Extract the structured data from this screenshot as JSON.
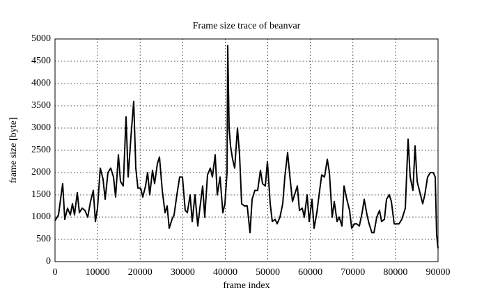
{
  "chart_data": {
    "type": "line",
    "title": "Frame size trace of beanvar",
    "xlabel": "frame index",
    "ylabel": "frame size [byte]",
    "xlim": [
      0,
      90000
    ],
    "ylim": [
      0,
      5000
    ],
    "xticks": [
      0,
      10000,
      20000,
      30000,
      40000,
      50000,
      60000,
      70000,
      80000,
      90000
    ],
    "yticks": [
      0,
      500,
      1000,
      1500,
      2000,
      2500,
      3000,
      3500,
      4000,
      4500,
      5000
    ],
    "grid": true,
    "x": [
      0,
      818,
      1800,
      2291,
      2945,
      3600,
      4091,
      4582,
      5236,
      5727,
      6382,
      7036,
      7691,
      8345,
      9000,
      9491,
      9982,
      10636,
      11291,
      11782,
      12436,
      13091,
      13745,
      14236,
      14891,
      15382,
      16036,
      16691,
      17182,
      17836,
      18491,
      18982,
      19473,
      20127,
      20618,
      21273,
      21764,
      22255,
      22909,
      23400,
      24055,
      24545,
      25200,
      25855,
      26345,
      26836,
      27491,
      27982,
      28636,
      29291,
      29945,
      30600,
      31091,
      31745,
      32236,
      32891,
      33545,
      34036,
      34691,
      35182,
      35836,
      36491,
      36982,
      37636,
      38127,
      38782,
      39436,
      39927,
      40418,
      40582,
      40909,
      41236,
      41727,
      42218,
      42873,
      43364,
      43855,
      44509,
      45164,
      45818,
      46309,
      46964,
      47618,
      48273,
      48764,
      49418,
      49909,
      50564,
      51055,
      51709,
      52200,
      52855,
      53509,
      54000,
      54655,
      55145,
      55800,
      56291,
      56945,
      57436,
      58091,
      58582,
      59236,
      59727,
      60382,
      60873,
      61527,
      62182,
      62673,
      63327,
      63982,
      64473,
      65127,
      65618,
      66273,
      66764,
      67418,
      67909,
      68564,
      69218,
      69709,
      70364,
      70855,
      71509,
      72164,
      72655,
      73309,
      73800,
      74455,
      74945,
      75600,
      76255,
      76745,
      77400,
      77891,
      78545,
      79036,
      79691,
      80345,
      80836,
      81491,
      82309,
      82964,
      83455,
      84109,
      84600,
      85091,
      85745,
      86400,
      86891,
      87545,
      88200,
      88855,
      89345,
      89673,
      90000
    ],
    "series": [
      {
        "color": "#000000",
        "values": [
          920,
          1050,
          1750,
          950,
          1200,
          1050,
          1300,
          1050,
          1550,
          1100,
          1200,
          1150,
          1000,
          1350,
          1600,
          900,
          1200,
          2100,
          1850,
          1400,
          2000,
          2100,
          1900,
          1450,
          2400,
          1800,
          1700,
          3250,
          1900,
          2800,
          3600,
          2100,
          1650,
          1650,
          1450,
          1700,
          2000,
          1500,
          2050,
          1750,
          2200,
          2350,
          1600,
          1100,
          1250,
          750,
          950,
          1050,
          1500,
          1900,
          1900,
          1150,
          1100,
          1500,
          900,
          1500,
          800,
          1200,
          1700,
          1000,
          1950,
          2100,
          1900,
          2400,
          1500,
          1900,
          1100,
          1300,
          2000,
          4850,
          3000,
          2600,
          2300,
          2100,
          3000,
          2400,
          1300,
          1250,
          1250,
          650,
          1400,
          1600,
          1600,
          2050,
          1750,
          1700,
          2250,
          1300,
          900,
          950,
          850,
          1000,
          1300,
          1900,
          2450,
          1950,
          1350,
          1500,
          1700,
          1150,
          1200,
          1000,
          1500,
          900,
          1400,
          750,
          1100,
          1600,
          1950,
          1900,
          2300,
          2000,
          1000,
          1350,
          900,
          1000,
          800,
          1700,
          1400,
          1150,
          750,
          850,
          850,
          800,
          1100,
          1400,
          1050,
          850,
          650,
          650,
          1000,
          1150,
          900,
          950,
          1400,
          1500,
          1350,
          850,
          850,
          850,
          950,
          1200,
          2750,
          1900,
          1600,
          2600,
          1800,
          1550,
          1300,
          1500,
          1900,
          2000,
          2000,
          1900,
          600,
          300
        ]
      }
    ]
  }
}
